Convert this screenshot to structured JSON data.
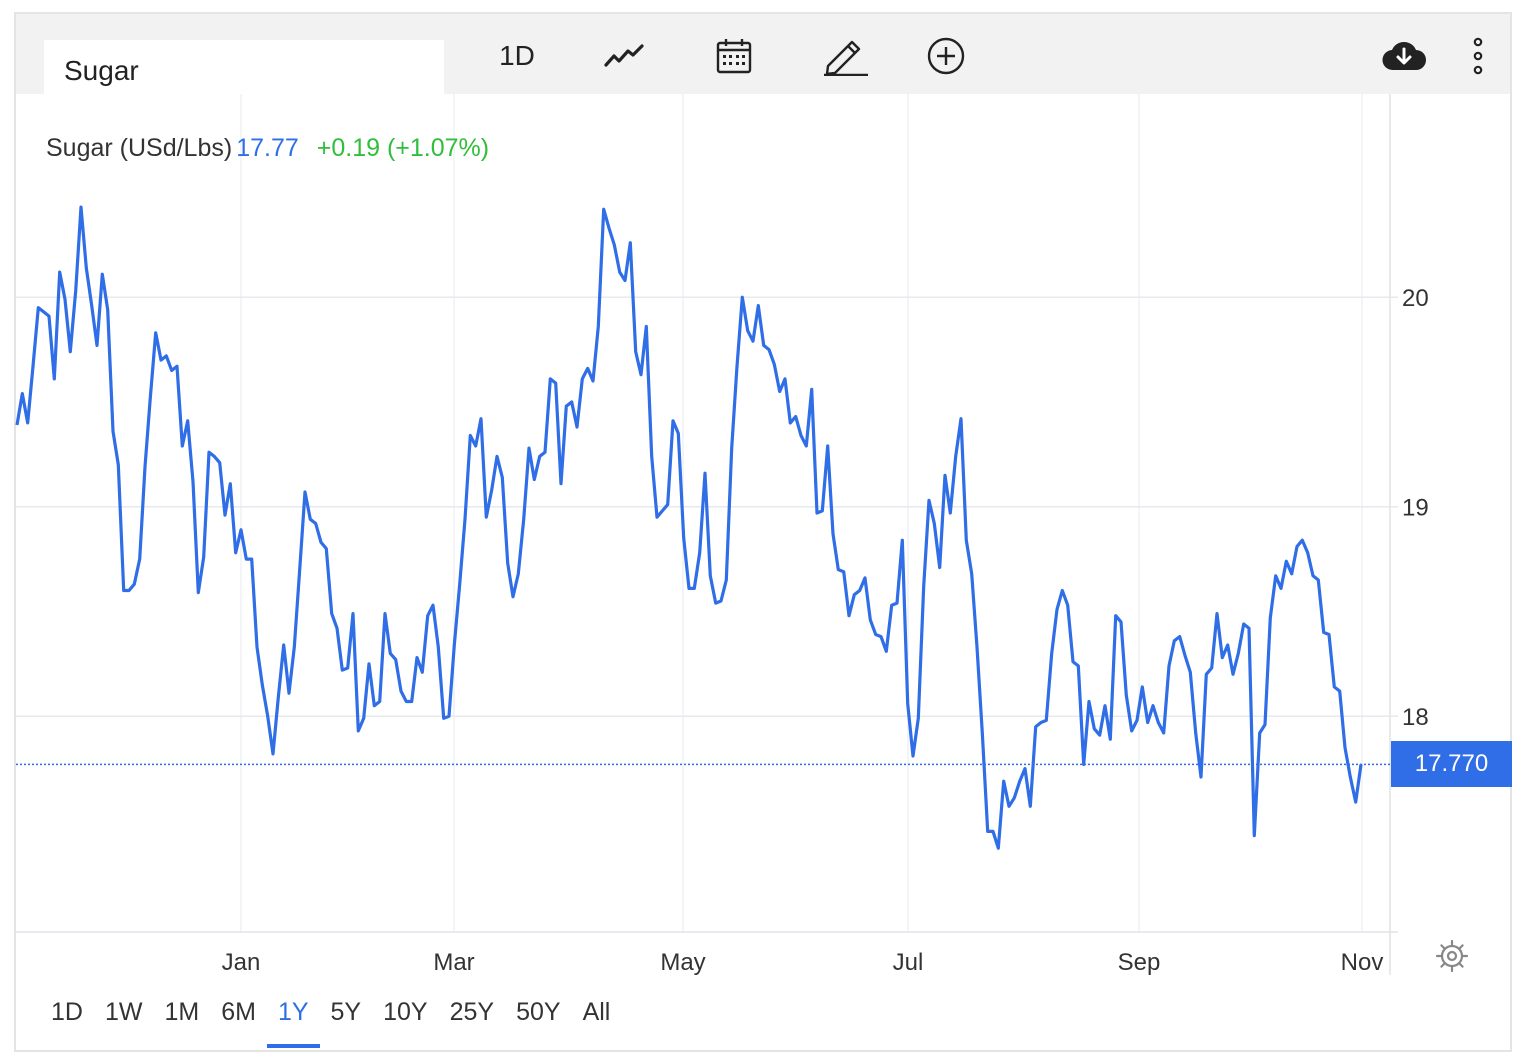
{
  "toolbar": {
    "symbol_value": "Sugar",
    "interval_label": "1D",
    "icons": [
      "line-chart-icon",
      "calendar-icon",
      "pencil-icon",
      "plus-circle-icon",
      "cloud-download-icon",
      "more-vertical-icon"
    ]
  },
  "legend": {
    "name": "Sugar (USd/Lbs)",
    "price": "17.77",
    "change": "+0.19 (+1.07%)"
  },
  "last_price_label": "17.770",
  "ranges": [
    "1D",
    "1W",
    "1M",
    "6M",
    "1Y",
    "5Y",
    "10Y",
    "25Y",
    "50Y",
    "All"
  ],
  "active_range": "1Y",
  "colors": {
    "line": "#2f6ee6",
    "positive": "#2fbf3a",
    "grid": "#e8edf2"
  },
  "chart_data": {
    "type": "line",
    "ylim": [
      16.97,
      20.97
    ],
    "yticks": [
      "18",
      "19",
      "20"
    ],
    "ytick_values": [
      18,
      19,
      20
    ],
    "xticks": [
      "Jan",
      "Mar",
      "May",
      "Jul",
      "Sep",
      "Nov"
    ],
    "grid": true,
    "last_value": 17.77,
    "series": [
      {
        "values": [
          19.39,
          19.54,
          19.4,
          19.67,
          19.95,
          19.93,
          19.91,
          19.61,
          20.12,
          19.99,
          19.74,
          20.03,
          20.43,
          20.14,
          19.96,
          19.77,
          20.11,
          19.94,
          19.36,
          19.2,
          18.6,
          18.6,
          18.63,
          18.75,
          19.19,
          19.52,
          19.83,
          19.7,
          19.72,
          19.65,
          19.67,
          19.29,
          19.41,
          19.12,
          18.59,
          18.76,
          19.26,
          19.24,
          19.21,
          18.96,
          19.11,
          18.78,
          18.89,
          18.75,
          18.75,
          18.33,
          18.15,
          18.0,
          17.82,
          18.09,
          18.34,
          18.11,
          18.33,
          18.7,
          19.07,
          18.94,
          18.92,
          18.83,
          18.8,
          18.49,
          18.42,
          18.22,
          18.23,
          18.49,
          17.93,
          17.99,
          18.25,
          18.05,
          18.07,
          18.49,
          18.3,
          18.27,
          18.12,
          18.07,
          18.07,
          18.28,
          18.21,
          18.48,
          18.53,
          18.33,
          17.99,
          18.0,
          18.34,
          18.63,
          18.94,
          19.34,
          19.29,
          19.42,
          18.95,
          19.08,
          19.24,
          19.14,
          18.73,
          18.57,
          18.68,
          18.94,
          19.28,
          19.13,
          19.24,
          19.26,
          19.61,
          19.59,
          19.11,
          19.48,
          19.5,
          19.38,
          19.61,
          19.66,
          19.6,
          19.86,
          20.42,
          20.33,
          20.25,
          20.12,
          20.08,
          20.26,
          19.74,
          19.63,
          19.86,
          19.24,
          18.95,
          18.98,
          19.01,
          19.41,
          19.35,
          18.85,
          18.61,
          18.61,
          18.78,
          19.16,
          18.67,
          18.54,
          18.55,
          18.65,
          19.28,
          19.67,
          20.0,
          19.84,
          19.79,
          19.96,
          19.77,
          19.75,
          19.68,
          19.55,
          19.61,
          19.4,
          19.43,
          19.34,
          19.29,
          19.56,
          18.97,
          18.98,
          19.29,
          18.87,
          18.7,
          18.69,
          18.48,
          18.58,
          18.6,
          18.66,
          18.46,
          18.39,
          18.38,
          18.31,
          18.53,
          18.54,
          18.84,
          18.06,
          17.81,
          17.99,
          18.62,
          19.03,
          18.92,
          18.71,
          19.15,
          18.97,
          19.24,
          19.42,
          18.84,
          18.68,
          18.33,
          17.92,
          17.45,
          17.45,
          17.37,
          17.69,
          17.57,
          17.61,
          17.69,
          17.75,
          17.57,
          17.95,
          17.97,
          17.98,
          18.3,
          18.51,
          18.6,
          18.53,
          18.26,
          18.24,
          17.77,
          18.07,
          17.94,
          17.91,
          18.05,
          17.89,
          18.48,
          18.45,
          18.1,
          17.93,
          17.98,
          18.14,
          17.97,
          18.05,
          17.97,
          17.92,
          18.24,
          18.36,
          18.38,
          18.29,
          18.21,
          17.92,
          17.71,
          18.2,
          18.23,
          18.49,
          18.28,
          18.34,
          18.2,
          18.3,
          18.44,
          18.42,
          17.43,
          17.92,
          17.96,
          18.47,
          18.67,
          18.61,
          18.74,
          18.68,
          18.81,
          18.84,
          18.78,
          18.67,
          18.65,
          18.4,
          18.39,
          18.14,
          18.12,
          17.85,
          17.71,
          17.59,
          17.77
        ]
      }
    ]
  }
}
